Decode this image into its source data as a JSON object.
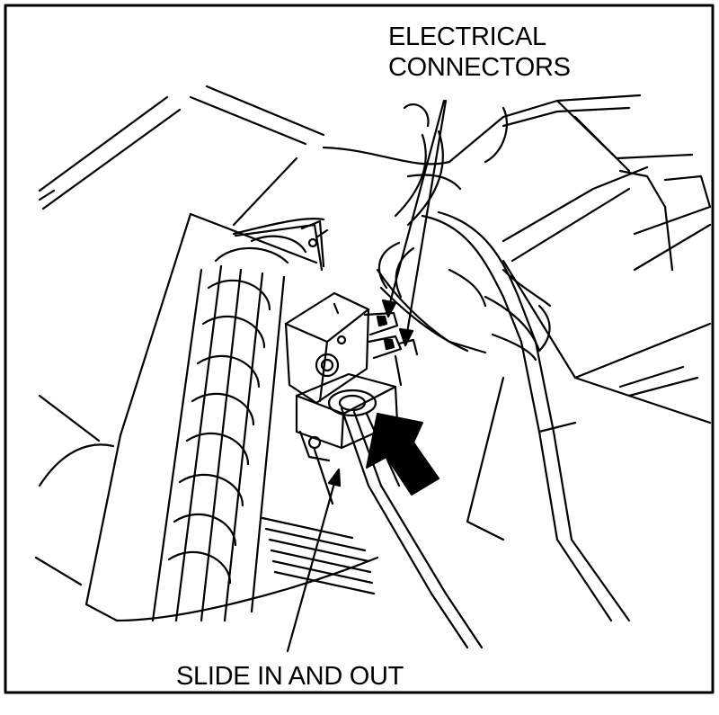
{
  "figure": {
    "callouts": {
      "electrical_connectors": {
        "line1": "ELECTRICAL",
        "line2": "CONNECTORS"
      },
      "slide_in_and_out": "SLIDE IN AND OUT"
    },
    "colors": {
      "ink": "#000000",
      "paper": "#ffffff"
    }
  }
}
